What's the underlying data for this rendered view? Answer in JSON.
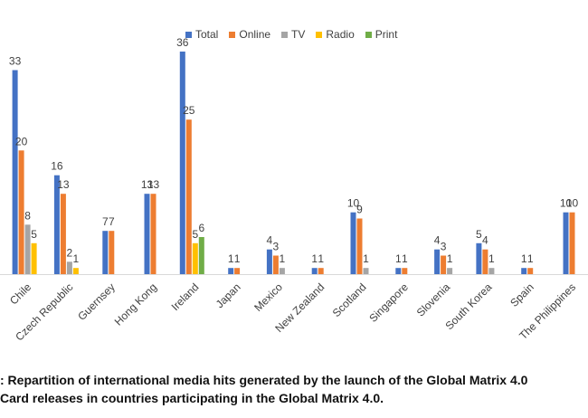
{
  "chart_data": {
    "type": "bar",
    "title": "",
    "xlabel": "",
    "ylabel": "",
    "ylim": [
      0,
      38
    ],
    "grid": false,
    "legend_position": "top",
    "categories": [
      "Chile",
      "Czech Republic",
      "Guernsey",
      "Hong Kong",
      "Ireland",
      "Japan",
      "Mexico",
      "New Zealand",
      "Scotland",
      "Singapore",
      "Slovenia",
      "South Korea",
      "Spain",
      "The Philippines"
    ],
    "series": [
      {
        "name": "Total",
        "color": "#4472C4",
        "values": [
          33,
          16,
          7,
          13,
          36,
          1,
          4,
          1,
          10,
          1,
          4,
          5,
          1,
          10
        ]
      },
      {
        "name": "Online",
        "color": "#ED7D31",
        "values": [
          20,
          13,
          7,
          13,
          25,
          1,
          3,
          1,
          9,
          1,
          3,
          4,
          1,
          10
        ]
      },
      {
        "name": "TV",
        "color": "#A5A5A5",
        "values": [
          8,
          2,
          null,
          null,
          null,
          null,
          1,
          null,
          1,
          null,
          1,
          1,
          null,
          null
        ]
      },
      {
        "name": "Radio",
        "color": "#FFC000",
        "values": [
          5,
          1,
          null,
          null,
          5,
          null,
          null,
          null,
          null,
          null,
          null,
          null,
          null,
          null
        ]
      },
      {
        "name": "Print",
        "color": "#70AD47",
        "values": [
          null,
          null,
          null,
          null,
          6,
          null,
          null,
          null,
          null,
          null,
          null,
          null,
          null,
          null
        ]
      }
    ]
  },
  "caption": {
    "line1": ": Repartition of international media hits generated by the launch of the Global Matrix 4.0",
    "line2": "Card releases in countries participating in the Global Matrix 4.0."
  }
}
